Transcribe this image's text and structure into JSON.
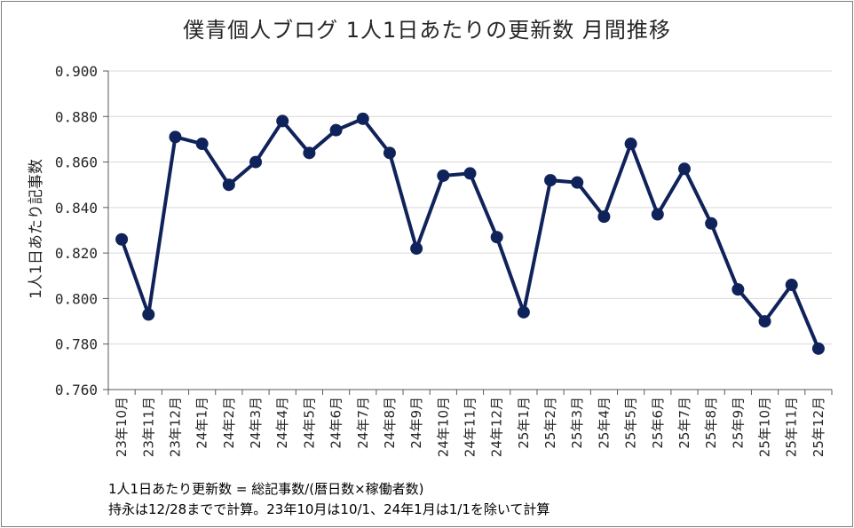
{
  "title": "僕青個人ブログ 1人1日あたりの更新数 月間推移",
  "chart_data": {
    "type": "line",
    "title": "僕青個人ブログ 1人1日あたりの更新数 月間推移",
    "xlabel": "",
    "ylabel": "1人1日あたり記事数",
    "ylim": [
      0.76,
      0.9
    ],
    "yticks": [
      "0.760",
      "0.780",
      "0.800",
      "0.820",
      "0.840",
      "0.860",
      "0.880",
      "0.900"
    ],
    "yticks_values": [
      0.76,
      0.78,
      0.8,
      0.82,
      0.84,
      0.86,
      0.88,
      0.9
    ],
    "grid": true,
    "categories": [
      "23年10月",
      "23年11月",
      "23年12月",
      "24年1月",
      "24年2月",
      "24年3月",
      "24年4月",
      "24年5月",
      "24年6月",
      "24年7月",
      "24年8月",
      "24年9月",
      "24年10月",
      "24年11月",
      "24年12月",
      "25年1月",
      "25年2月",
      "25年3月",
      "25年4月",
      "25年5月",
      "25年6月",
      "25年7月",
      "25年8月",
      "25年9月",
      "25年10月",
      "25年11月",
      "25年12月"
    ],
    "series": [
      {
        "name": "1人1日あたり記事数",
        "color": "#10225a",
        "values": [
          0.826,
          0.793,
          0.871,
          0.868,
          0.85,
          0.86,
          0.878,
          0.864,
          0.874,
          0.879,
          0.864,
          0.822,
          0.854,
          0.855,
          0.827,
          0.794,
          0.852,
          0.851,
          0.836,
          0.868,
          0.837,
          0.857,
          0.833,
          0.804,
          0.79,
          0.806,
          0.778
        ]
      }
    ]
  },
  "notes": [
    "1人1日あたり更新数 = 総記事数/(暦日数×稼働者数)",
    "持永は12/28までで計算。23年10月は10/1、24年1月は1/1を除いて計算"
  ]
}
